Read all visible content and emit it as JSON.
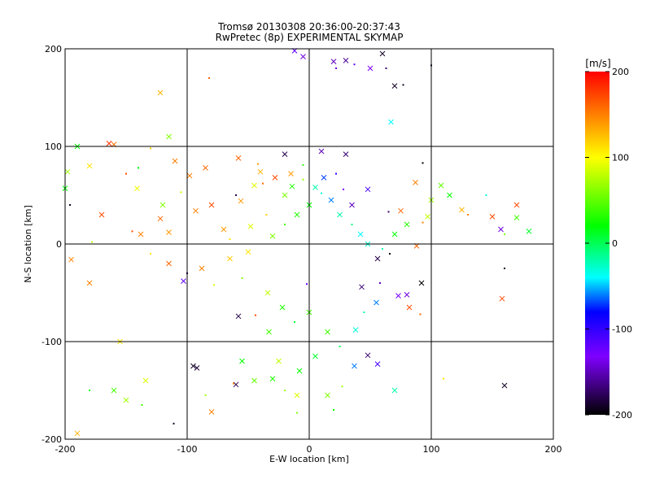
{
  "chart_data": {
    "type": "scatter",
    "title": "Tromsø 20130308 20:36:00-20:37:43",
    "subtitle": "RwPretec (8p) EXPERIMENTAL SKYMAP",
    "xlabel": "E-W location [km]",
    "ylabel": "N-S location [km]",
    "xlim": [
      -200,
      200
    ],
    "ylim": [
      -200,
      200
    ],
    "xticks": [
      "-200",
      "-100",
      "0",
      "100",
      "200"
    ],
    "yticks": [
      "-200",
      "-100",
      "0",
      "100",
      "200"
    ],
    "grid": true,
    "colorbar": {
      "label": "[m/s]",
      "range": [
        -200,
        200
      ],
      "ticks": [
        "200",
        "100",
        "0",
        "-100",
        "-200"
      ],
      "colors": [
        "#000000",
        "#7f00ff",
        "#0000ff",
        "#00ffff",
        "#00ff00",
        "#ffff00",
        "#ff0000"
      ]
    },
    "marker_types": [
      "cross",
      "dot"
    ],
    "points": [
      [
        -164,
        103,
        180
      ],
      [
        -160,
        102,
        155
      ],
      [
        -140,
        78,
        20
      ],
      [
        -141,
        57,
        95
      ],
      [
        -122,
        155,
        130
      ],
      [
        -82,
        170,
        160
      ],
      [
        -110,
        85,
        150
      ],
      [
        -58,
        88,
        160
      ],
      [
        -42,
        82,
        140
      ],
      [
        -40,
        74,
        130
      ],
      [
        -20,
        92,
        -180
      ],
      [
        -5,
        81,
        30
      ],
      [
        10,
        95,
        -150
      ],
      [
        30,
        92,
        -170
      ],
      [
        -150,
        72,
        170
      ],
      [
        -195,
        -16,
        150
      ],
      [
        -160,
        -150,
        40
      ],
      [
        -111,
        -184,
        -190
      ],
      [
        -92,
        -127,
        -185
      ],
      [
        -95,
        -125,
        -190
      ],
      [
        -85,
        -155,
        70
      ],
      [
        -80,
        -172,
        150
      ],
      [
        -60,
        -144,
        -180
      ],
      [
        -62,
        -143,
        150
      ],
      [
        -25,
        -120,
        80
      ],
      [
        -30,
        -138,
        30
      ],
      [
        -10,
        -173,
        60
      ],
      [
        -10,
        -155,
        90
      ],
      [
        15,
        -155,
        60
      ],
      [
        27,
        -146,
        70
      ],
      [
        48,
        -114,
        -170
      ],
      [
        56,
        -123,
        -110
      ],
      [
        58,
        -40,
        -150
      ],
      [
        73,
        -53,
        -130
      ],
      [
        80,
        -52,
        -140
      ],
      [
        110,
        -138,
        110
      ],
      [
        158,
        -56,
        170
      ],
      [
        160,
        -145,
        -190
      ],
      [
        160,
        -25,
        -190
      ],
      [
        170,
        27,
        40
      ],
      [
        157,
        15,
        -140
      ],
      [
        160,
        10,
        60
      ],
      [
        180,
        13,
        10
      ],
      [
        150,
        28,
        170
      ],
      [
        130,
        30,
        150
      ],
      [
        125,
        35,
        130
      ],
      [
        100,
        45,
        70
      ],
      [
        93,
        22,
        150
      ],
      [
        97,
        28,
        80
      ],
      [
        88,
        -2,
        160
      ],
      [
        63,
        180,
        -170
      ],
      [
        60,
        195,
        -190
      ],
      [
        50,
        180,
        -130
      ],
      [
        37,
        184,
        -120
      ],
      [
        30,
        188,
        -160
      ],
      [
        20,
        187,
        -150
      ],
      [
        22,
        180,
        -140
      ],
      [
        -12,
        198,
        -120
      ],
      [
        -5,
        192,
        -140
      ],
      [
        77,
        163,
        -190
      ],
      [
        70,
        162,
        -190
      ],
      [
        67,
        125,
        -40
      ],
      [
        100,
        183,
        -190
      ],
      [
        -180,
        80,
        110
      ],
      [
        -190,
        100,
        20
      ],
      [
        -196,
        40,
        -190
      ],
      [
        -198,
        74,
        70
      ],
      [
        -200,
        57,
        20
      ],
      [
        -130,
        98,
        120
      ],
      [
        -115,
        110,
        60
      ],
      [
        -190,
        -194,
        130
      ],
      [
        -180,
        -150,
        10
      ],
      [
        -180,
        -40,
        150
      ],
      [
        -155,
        -100,
        110
      ],
      [
        -137,
        -165,
        40
      ],
      [
        -134,
        -140,
        90
      ],
      [
        -150,
        -160,
        70
      ],
      [
        -44,
        -73,
        170
      ],
      [
        -58,
        -74,
        -180
      ],
      [
        -33,
        -90,
        40
      ],
      [
        -2,
        -41,
        -120
      ],
      [
        43,
        -44,
        -170
      ],
      [
        56,
        -15,
        -180
      ],
      [
        66,
        -10,
        -200
      ],
      [
        92,
        -40,
        -200
      ],
      [
        82,
        -65,
        170
      ],
      [
        91,
        -72,
        160
      ],
      [
        -93,
        34,
        150
      ],
      [
        -80,
        40,
        170
      ],
      [
        -60,
        50,
        -180
      ],
      [
        -56,
        44,
        140
      ],
      [
        -45,
        60,
        90
      ],
      [
        -35,
        30,
        120
      ],
      [
        -20,
        50,
        60
      ],
      [
        -14,
        59,
        30
      ],
      [
        28,
        56,
        -130
      ],
      [
        35,
        40,
        -150
      ],
      [
        48,
        56,
        -110
      ],
      [
        65,
        33,
        -170
      ],
      [
        75,
        34,
        160
      ],
      [
        87,
        63,
        150
      ],
      [
        93,
        83,
        -200
      ],
      [
        108,
        60,
        50
      ],
      [
        115,
        50,
        20
      ],
      [
        145,
        50,
        -30
      ],
      [
        170,
        40,
        170
      ],
      [
        -120,
        40,
        60
      ],
      [
        -105,
        53,
        80
      ],
      [
        -98,
        70,
        150
      ],
      [
        -85,
        78,
        160
      ],
      [
        -145,
        13,
        170
      ],
      [
        -122,
        26,
        160
      ],
      [
        -115,
        12,
        140
      ],
      [
        -100,
        -30,
        -180
      ],
      [
        -103,
        -38,
        -120
      ],
      [
        -88,
        -25,
        150
      ],
      [
        -78,
        -42,
        90
      ],
      [
        -65,
        -15,
        120
      ],
      [
        -50,
        -8,
        110
      ],
      [
        -55,
        -35,
        60
      ],
      [
        -34,
        -50,
        80
      ],
      [
        -22,
        -65,
        30
      ],
      [
        -12,
        -80,
        10
      ],
      [
        0,
        -70,
        40
      ],
      [
        15,
        -90,
        40
      ],
      [
        25,
        -105,
        0
      ],
      [
        37,
        -125,
        -60
      ],
      [
        38,
        -88,
        -30
      ],
      [
        45,
        -70,
        -20
      ],
      [
        55,
        -60,
        -60
      ],
      [
        -70,
        15,
        140
      ],
      [
        -65,
        5,
        110
      ],
      [
        -48,
        18,
        90
      ],
      [
        -30,
        8,
        60
      ],
      [
        -20,
        20,
        40
      ],
      [
        -10,
        30,
        30
      ],
      [
        0,
        40,
        20
      ],
      [
        10,
        52,
        -30
      ],
      [
        18,
        45,
        -60
      ],
      [
        25,
        30,
        -20
      ],
      [
        35,
        20,
        -10
      ],
      [
        42,
        10,
        -40
      ],
      [
        48,
        0,
        -30
      ],
      [
        60,
        -5,
        -20
      ],
      [
        70,
        10,
        20
      ],
      [
        80,
        20,
        30
      ],
      [
        -38,
        62,
        160
      ],
      [
        -28,
        68,
        170
      ],
      [
        -15,
        72,
        140
      ],
      [
        -5,
        66,
        70
      ],
      [
        5,
        58,
        -20
      ],
      [
        12,
        68,
        -70
      ],
      [
        22,
        72,
        -100
      ],
      [
        -55,
        -120,
        20
      ],
      [
        -45,
        -140,
        50
      ],
      [
        -20,
        -150,
        70
      ],
      [
        -8,
        -130,
        20
      ],
      [
        5,
        -115,
        10
      ],
      [
        20,
        -170,
        20
      ],
      [
        70,
        -150,
        -20
      ],
      [
        -115,
        -20,
        160
      ],
      [
        -130,
        -10,
        110
      ],
      [
        -138,
        10,
        150
      ],
      [
        -170,
        30,
        170
      ],
      [
        -178,
        2,
        80
      ]
    ]
  }
}
